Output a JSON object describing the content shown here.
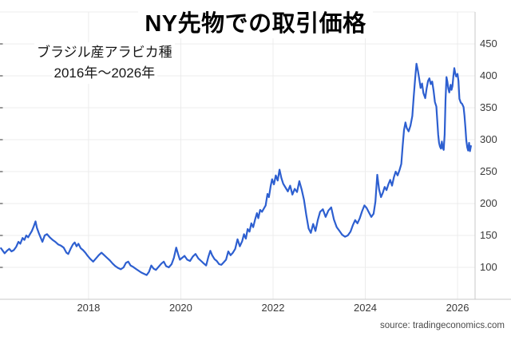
{
  "chart_data": {
    "type": "line",
    "title": "NY先物での取引価格",
    "subtitle_line1": "ブラジル産アラビカ種",
    "subtitle_line2": "2016年〜2026年",
    "source": "source: tradingeconomics.com",
    "xlabel": "",
    "ylabel": "",
    "grid": true,
    "legend": "none",
    "x_range": [
      2016.08,
      2026.38
    ],
    "y_range": [
      50,
      500
    ],
    "x_ticks": [
      2018,
      2020,
      2022,
      2024,
      2026
    ],
    "y_ticks": [
      100,
      150,
      200,
      250,
      300,
      350,
      400,
      450
    ],
    "line_color": "#2d5fd0",
    "grid_color": "#ececec",
    "axis_color": "#c9c9c9",
    "edge_tick_color": "#777777",
    "points": [
      [
        2016.1,
        130
      ],
      [
        2016.14,
        126
      ],
      [
        2016.18,
        122
      ],
      [
        2016.23,
        126
      ],
      [
        2016.28,
        129
      ],
      [
        2016.33,
        125
      ],
      [
        2016.38,
        127
      ],
      [
        2016.43,
        132
      ],
      [
        2016.48,
        140
      ],
      [
        2016.52,
        137
      ],
      [
        2016.57,
        146
      ],
      [
        2016.61,
        143
      ],
      [
        2016.65,
        150
      ],
      [
        2016.69,
        147
      ],
      [
        2016.73,
        152
      ],
      [
        2016.77,
        157
      ],
      [
        2016.81,
        164
      ],
      [
        2016.85,
        172
      ],
      [
        2016.88,
        162
      ],
      [
        2016.92,
        154
      ],
      [
        2016.96,
        147
      ],
      [
        2017.0,
        140
      ],
      [
        2017.05,
        150
      ],
      [
        2017.1,
        152
      ],
      [
        2017.16,
        147
      ],
      [
        2017.22,
        143
      ],
      [
        2017.28,
        140
      ],
      [
        2017.34,
        136
      ],
      [
        2017.4,
        134
      ],
      [
        2017.46,
        131
      ],
      [
        2017.52,
        123
      ],
      [
        2017.56,
        121
      ],
      [
        2017.61,
        129
      ],
      [
        2017.66,
        136
      ],
      [
        2017.7,
        139
      ],
      [
        2017.74,
        133
      ],
      [
        2017.78,
        137
      ],
      [
        2017.83,
        130
      ],
      [
        2017.88,
        127
      ],
      [
        2017.93,
        123
      ],
      [
        2017.98,
        118
      ],
      [
        2018.04,
        113
      ],
      [
        2018.1,
        109
      ],
      [
        2018.16,
        114
      ],
      [
        2018.22,
        119
      ],
      [
        2018.28,
        123
      ],
      [
        2018.34,
        119
      ],
      [
        2018.4,
        115
      ],
      [
        2018.46,
        111
      ],
      [
        2018.52,
        106
      ],
      [
        2018.58,
        102
      ],
      [
        2018.64,
        99
      ],
      [
        2018.7,
        97
      ],
      [
        2018.76,
        100
      ],
      [
        2018.81,
        107
      ],
      [
        2018.86,
        109
      ],
      [
        2018.91,
        103
      ],
      [
        2018.96,
        101
      ],
      [
        2019.02,
        98
      ],
      [
        2019.08,
        95
      ],
      [
        2019.14,
        92
      ],
      [
        2019.2,
        90
      ],
      [
        2019.26,
        88
      ],
      [
        2019.31,
        93
      ],
      [
        2019.36,
        103
      ],
      [
        2019.41,
        98
      ],
      [
        2019.46,
        96
      ],
      [
        2019.52,
        101
      ],
      [
        2019.58,
        106
      ],
      [
        2019.63,
        109
      ],
      [
        2019.68,
        102
      ],
      [
        2019.74,
        100
      ],
      [
        2019.8,
        105
      ],
      [
        2019.85,
        115
      ],
      [
        2019.9,
        131
      ],
      [
        2019.94,
        121
      ],
      [
        2019.98,
        112
      ],
      [
        2020.03,
        115
      ],
      [
        2020.08,
        118
      ],
      [
        2020.14,
        112
      ],
      [
        2020.2,
        110
      ],
      [
        2020.26,
        117
      ],
      [
        2020.32,
        121
      ],
      [
        2020.38,
        114
      ],
      [
        2020.44,
        110
      ],
      [
        2020.5,
        106
      ],
      [
        2020.55,
        103
      ],
      [
        2020.6,
        117
      ],
      [
        2020.64,
        126
      ],
      [
        2020.68,
        119
      ],
      [
        2020.73,
        113
      ],
      [
        2020.78,
        110
      ],
      [
        2020.83,
        105
      ],
      [
        2020.88,
        104
      ],
      [
        2020.93,
        108
      ],
      [
        2020.98,
        112
      ],
      [
        2021.03,
        125
      ],
      [
        2021.08,
        119
      ],
      [
        2021.13,
        123
      ],
      [
        2021.18,
        129
      ],
      [
        2021.23,
        144
      ],
      [
        2021.28,
        133
      ],
      [
        2021.33,
        141
      ],
      [
        2021.37,
        152
      ],
      [
        2021.41,
        145
      ],
      [
        2021.45,
        160
      ],
      [
        2021.49,
        156
      ],
      [
        2021.53,
        169
      ],
      [
        2021.57,
        163
      ],
      [
        2021.61,
        175
      ],
      [
        2021.65,
        185
      ],
      [
        2021.68,
        177
      ],
      [
        2021.72,
        190
      ],
      [
        2021.76,
        187
      ],
      [
        2021.8,
        192
      ],
      [
        2021.84,
        197
      ],
      [
        2021.88,
        215
      ],
      [
        2021.91,
        210
      ],
      [
        2021.95,
        228
      ],
      [
        2021.98,
        238
      ],
      [
        2022.02,
        230
      ],
      [
        2022.06,
        244
      ],
      [
        2022.1,
        236
      ],
      [
        2022.14,
        253
      ],
      [
        2022.18,
        240
      ],
      [
        2022.22,
        231
      ],
      [
        2022.27,
        225
      ],
      [
        2022.32,
        219
      ],
      [
        2022.37,
        228
      ],
      [
        2022.42,
        214
      ],
      [
        2022.47,
        223
      ],
      [
        2022.52,
        218
      ],
      [
        2022.57,
        235
      ],
      [
        2022.62,
        222
      ],
      [
        2022.67,
        206
      ],
      [
        2022.72,
        182
      ],
      [
        2022.77,
        161
      ],
      [
        2022.82,
        154
      ],
      [
        2022.87,
        168
      ],
      [
        2022.92,
        157
      ],
      [
        2022.97,
        174
      ],
      [
        2023.02,
        187
      ],
      [
        2023.08,
        191
      ],
      [
        2023.14,
        179
      ],
      [
        2023.2,
        189
      ],
      [
        2023.26,
        194
      ],
      [
        2023.32,
        175
      ],
      [
        2023.38,
        163
      ],
      [
        2023.44,
        157
      ],
      [
        2023.5,
        151
      ],
      [
        2023.56,
        148
      ],
      [
        2023.62,
        150
      ],
      [
        2023.68,
        156
      ],
      [
        2023.73,
        166
      ],
      [
        2023.78,
        174
      ],
      [
        2023.83,
        169
      ],
      [
        2023.88,
        177
      ],
      [
        2023.93,
        188
      ],
      [
        2023.98,
        197
      ],
      [
        2024.03,
        193
      ],
      [
        2024.08,
        186
      ],
      [
        2024.13,
        179
      ],
      [
        2024.18,
        184
      ],
      [
        2024.22,
        203
      ],
      [
        2024.26,
        245
      ],
      [
        2024.3,
        222
      ],
      [
        2024.34,
        210
      ],
      [
        2024.38,
        217
      ],
      [
        2024.42,
        226
      ],
      [
        2024.46,
        221
      ],
      [
        2024.5,
        230
      ],
      [
        2024.54,
        237
      ],
      [
        2024.58,
        228
      ],
      [
        2024.62,
        241
      ],
      [
        2024.66,
        250
      ],
      [
        2024.7,
        244
      ],
      [
        2024.74,
        252
      ],
      [
        2024.78,
        262
      ],
      [
        2024.81,
        290
      ],
      [
        2024.84,
        315
      ],
      [
        2024.87,
        327
      ],
      [
        2024.9,
        318
      ],
      [
        2024.94,
        313
      ],
      [
        2024.98,
        322
      ],
      [
        2025.02,
        337
      ],
      [
        2025.05,
        368
      ],
      [
        2025.08,
        395
      ],
      [
        2025.11,
        419
      ],
      [
        2025.14,
        408
      ],
      [
        2025.17,
        395
      ],
      [
        2025.2,
        381
      ],
      [
        2025.23,
        388
      ],
      [
        2025.26,
        373
      ],
      [
        2025.3,
        365
      ],
      [
        2025.33,
        380
      ],
      [
        2025.36,
        392
      ],
      [
        2025.39,
        396
      ],
      [
        2025.42,
        387
      ],
      [
        2025.45,
        391
      ],
      [
        2025.48,
        377
      ],
      [
        2025.51,
        359
      ],
      [
        2025.54,
        352
      ],
      [
        2025.56,
        331
      ],
      [
        2025.58,
        308
      ],
      [
        2025.6,
        295
      ],
      [
        2025.62,
        289
      ],
      [
        2025.64,
        286
      ],
      [
        2025.66,
        297
      ],
      [
        2025.68,
        287
      ],
      [
        2025.7,
        284
      ],
      [
        2025.72,
        308
      ],
      [
        2025.74,
        362
      ],
      [
        2025.76,
        398
      ],
      [
        2025.78,
        391
      ],
      [
        2025.8,
        380
      ],
      [
        2025.82,
        374
      ],
      [
        2025.85,
        386
      ],
      [
        2025.87,
        378
      ],
      [
        2025.89,
        384
      ],
      [
        2025.91,
        399
      ],
      [
        2025.93,
        412
      ],
      [
        2025.95,
        404
      ],
      [
        2025.97,
        399
      ],
      [
        2026.0,
        403
      ],
      [
        2026.02,
        392
      ],
      [
        2026.04,
        364
      ],
      [
        2026.07,
        358
      ],
      [
        2026.1,
        356
      ],
      [
        2026.13,
        351
      ],
      [
        2026.15,
        338
      ],
      [
        2026.17,
        319
      ],
      [
        2026.19,
        299
      ],
      [
        2026.21,
        288
      ],
      [
        2026.23,
        283
      ],
      [
        2026.25,
        295
      ],
      [
        2026.27,
        282
      ],
      [
        2026.29,
        290
      ]
    ]
  }
}
